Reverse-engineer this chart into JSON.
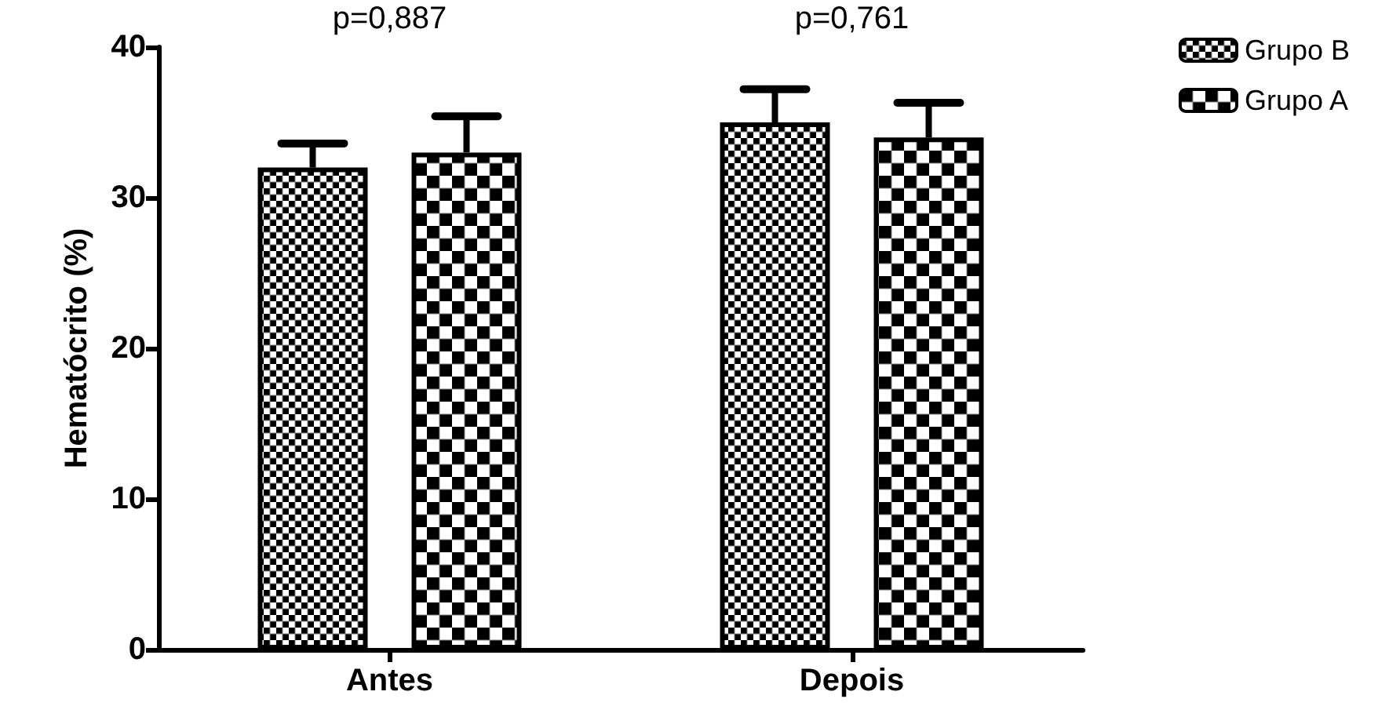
{
  "chart_data": {
    "type": "bar",
    "ylabel": "Hematócrito (%)",
    "categories": [
      "Antes",
      "Depois"
    ],
    "series": [
      {
        "name": "Grupo B",
        "color": "#000000",
        "values": [
          32,
          35
        ],
        "errors": [
          [
            32,
            33.6
          ],
          [
            35,
            37.2
          ]
        ]
      },
      {
        "name": "Grupo A",
        "color": "#000000",
        "values": [
          33,
          34
        ],
        "errors": [
          [
            33,
            35.4
          ],
          [
            34,
            36.3
          ]
        ]
      }
    ],
    "ylim": [
      0,
      40
    ],
    "yticks": [
      0,
      10,
      20,
      30,
      40
    ],
    "annotations": [
      "p=0,887",
      "p=0,761"
    ],
    "legend": "top right",
    "grid": false
  }
}
